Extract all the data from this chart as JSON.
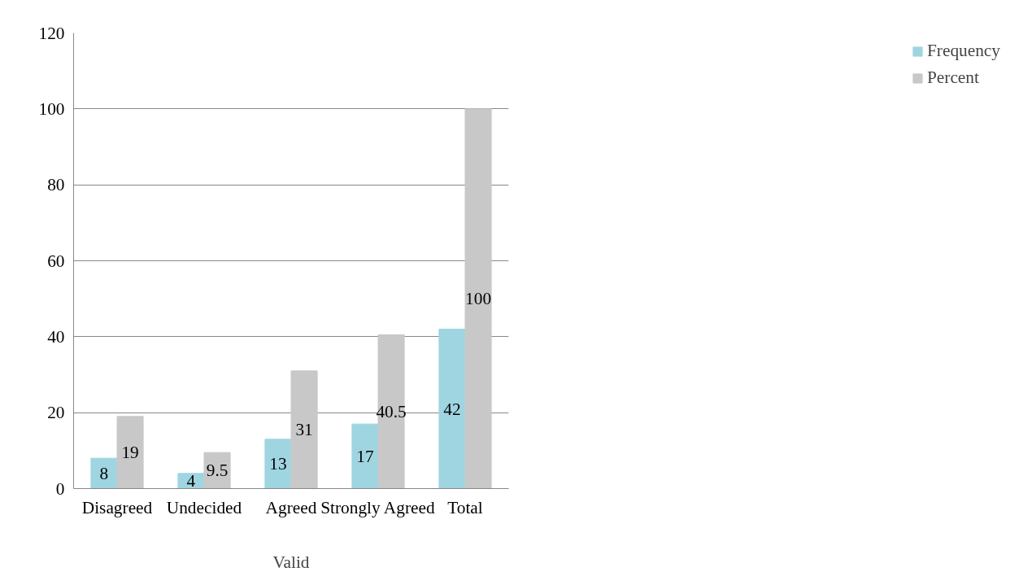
{
  "chart_data": {
    "type": "bar",
    "xlabel": "Valid",
    "categories": [
      "Disagreed",
      "Undecided",
      "Agreed",
      "Strongly Agreed",
      "Total"
    ],
    "series": [
      {
        "name": "Frequency",
        "color": "#9fd5e1",
        "values": [
          8,
          4,
          13,
          17,
          42
        ]
      },
      {
        "name": "Percent",
        "color": "#c8c8c8",
        "values": [
          19,
          9.5,
          31,
          40.5,
          100
        ]
      }
    ],
    "ylim": [
      0,
      120
    ],
    "yticks": [
      0,
      20,
      40,
      60,
      80,
      100,
      120
    ],
    "grid": "y",
    "legend": "right",
    "data_labels": true
  }
}
